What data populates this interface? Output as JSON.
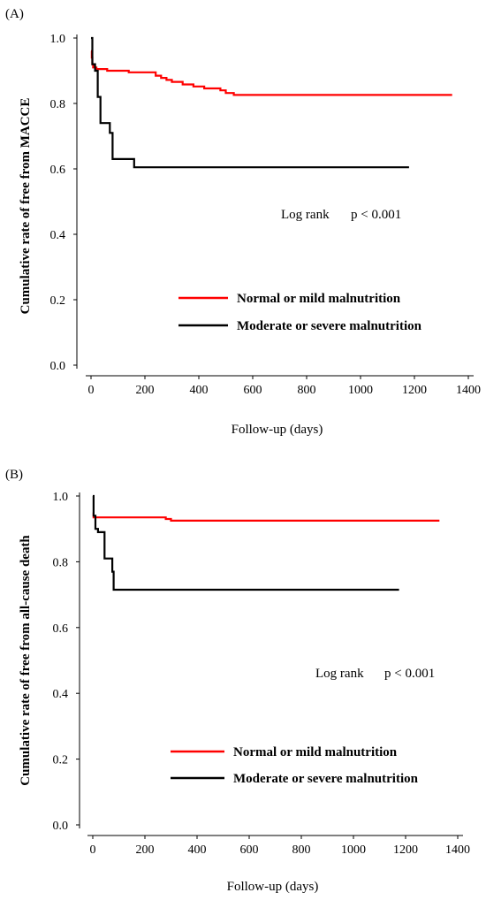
{
  "chart_data": [
    {
      "panel": "(A)",
      "type": "line",
      "xlabel": "Follow-up (days)",
      "ylabel": "Cumulative rate of free from MACCE",
      "xlim": [
        0,
        1400
      ],
      "ylim": [
        0,
        1
      ],
      "x_ticks": [
        "0",
        "200",
        "400",
        "600",
        "800",
        "1000",
        "1200",
        "1400"
      ],
      "y_ticks": [
        "0.0",
        "0.2",
        "0.4",
        "0.6",
        "0.8",
        "1.0"
      ],
      "annotation": {
        "label": "Log rank",
        "pvalue": "p < 0.001"
      },
      "series": [
        {
          "name": "Normal or mild malnutrition",
          "color": "#ff0000",
          "step": true,
          "points": [
            [
              0,
              0.96
            ],
            [
              3,
              0.94
            ],
            [
              5,
              0.92
            ],
            [
              8,
              0.91
            ],
            [
              20,
              0.905
            ],
            [
              60,
              0.9
            ],
            [
              140,
              0.895
            ],
            [
              240,
              0.885
            ],
            [
              260,
              0.878
            ],
            [
              280,
              0.872
            ],
            [
              300,
              0.866
            ],
            [
              340,
              0.858
            ],
            [
              380,
              0.852
            ],
            [
              420,
              0.846
            ],
            [
              480,
              0.84
            ],
            [
              500,
              0.832
            ],
            [
              530,
              0.826
            ],
            [
              1340,
              0.826
            ]
          ]
        },
        {
          "name": "Moderate or severe malnutrition",
          "color": "#000000",
          "step": true,
          "points": [
            [
              0,
              1.0
            ],
            [
              5,
              0.92
            ],
            [
              15,
              0.9
            ],
            [
              25,
              0.82
            ],
            [
              35,
              0.74
            ],
            [
              70,
              0.71
            ],
            [
              80,
              0.63
            ],
            [
              160,
              0.605
            ],
            [
              1180,
              0.605
            ]
          ]
        }
      ]
    },
    {
      "panel": "(B)",
      "type": "line",
      "xlabel": "Follow-up (days)",
      "ylabel": "Cumulative rate of free from all-cause death",
      "xlim": [
        0,
        1400
      ],
      "ylim": [
        0,
        1
      ],
      "x_ticks": [
        "0",
        "200",
        "400",
        "600",
        "800",
        "1000",
        "1200",
        "1400"
      ],
      "y_ticks": [
        "0.0",
        "0.2",
        "0.4",
        "0.6",
        "0.8",
        "1.0"
      ],
      "annotation": {
        "label": "Log rank",
        "pvalue": "p < 0.001"
      },
      "series": [
        {
          "name": "Normal or mild malnutrition",
          "color": "#ff0000",
          "step": true,
          "points": [
            [
              0,
              0.95
            ],
            [
              3,
              0.935
            ],
            [
              280,
              0.93
            ],
            [
              300,
              0.925
            ],
            [
              1330,
              0.925
            ]
          ]
        },
        {
          "name": "Moderate or severe malnutrition",
          "color": "#000000",
          "step": true,
          "points": [
            [
              0,
              1.0
            ],
            [
              3,
              0.94
            ],
            [
              10,
              0.9
            ],
            [
              20,
              0.89
            ],
            [
              45,
              0.81
            ],
            [
              75,
              0.77
            ],
            [
              80,
              0.715
            ],
            [
              1175,
              0.715
            ]
          ]
        }
      ]
    }
  ]
}
